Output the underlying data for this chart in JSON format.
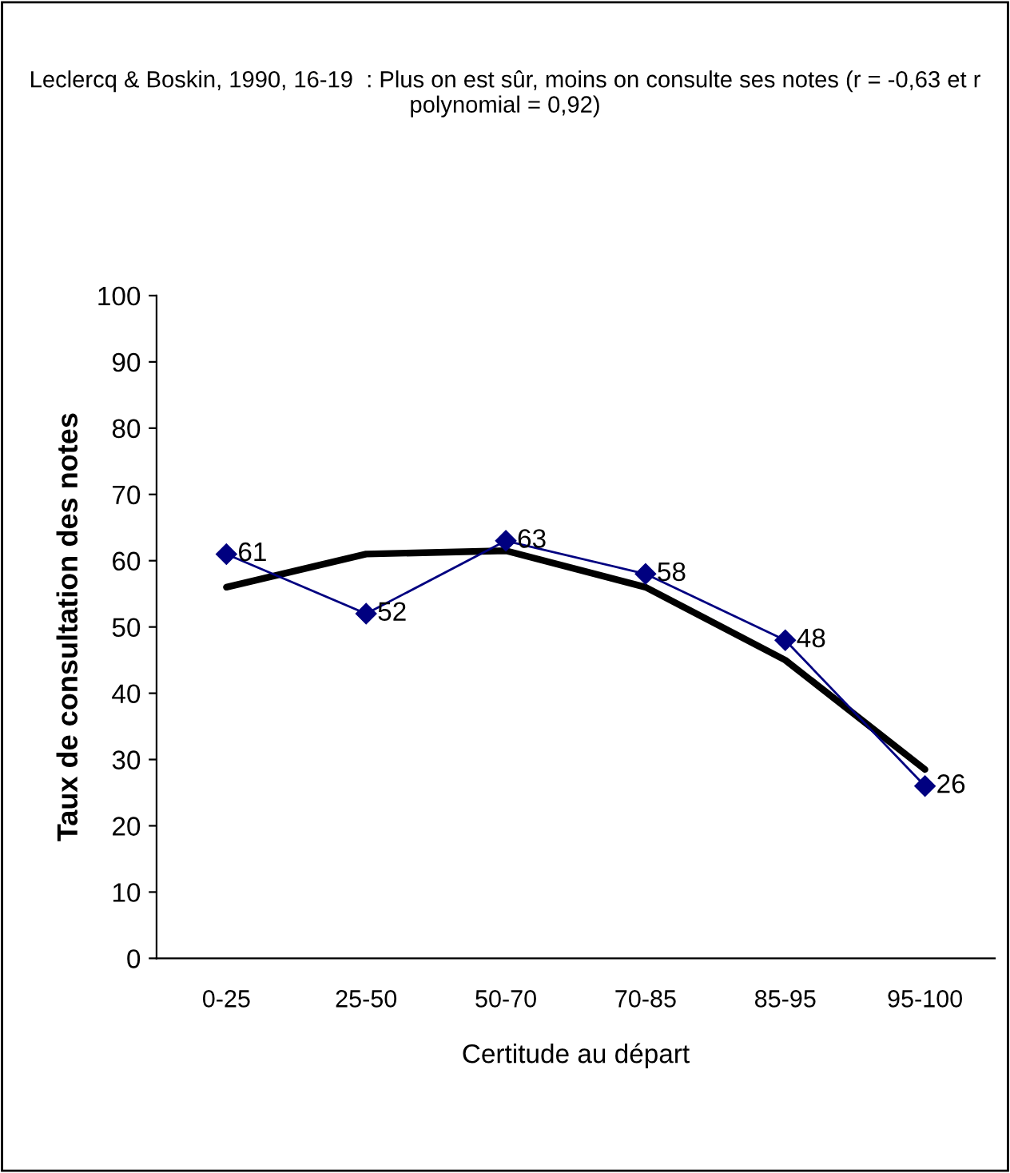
{
  "chart_data": {
    "type": "line",
    "title": "Leclercq & Boskin, 1990, 16-19  : Plus on est sûr, moins on consulte ses notes (r = -0,63 et r polynomial = 0,92)",
    "xlabel": "Certitude au départ",
    "ylabel": "Taux de consultation des notes",
    "categories": [
      "0-25",
      "25-50",
      "50-70",
      "70-85",
      "85-95",
      "95-100"
    ],
    "series": [
      {
        "color": "#000080",
        "marker": "diamond",
        "values": [
          61,
          52,
          63,
          58,
          48,
          26
        ],
        "value_labels": [
          "61",
          "52",
          "63",
          "58",
          "48",
          "26"
        ]
      },
      {
        "color": "#000000",
        "marker": "none",
        "values": [
          56,
          61,
          61.5,
          56,
          45,
          28.5
        ]
      }
    ],
    "ylim": [
      0,
      100
    ],
    "yticks": [
      0,
      10,
      20,
      30,
      40,
      50,
      60,
      70,
      80,
      90,
      100
    ],
    "grid": false
  }
}
